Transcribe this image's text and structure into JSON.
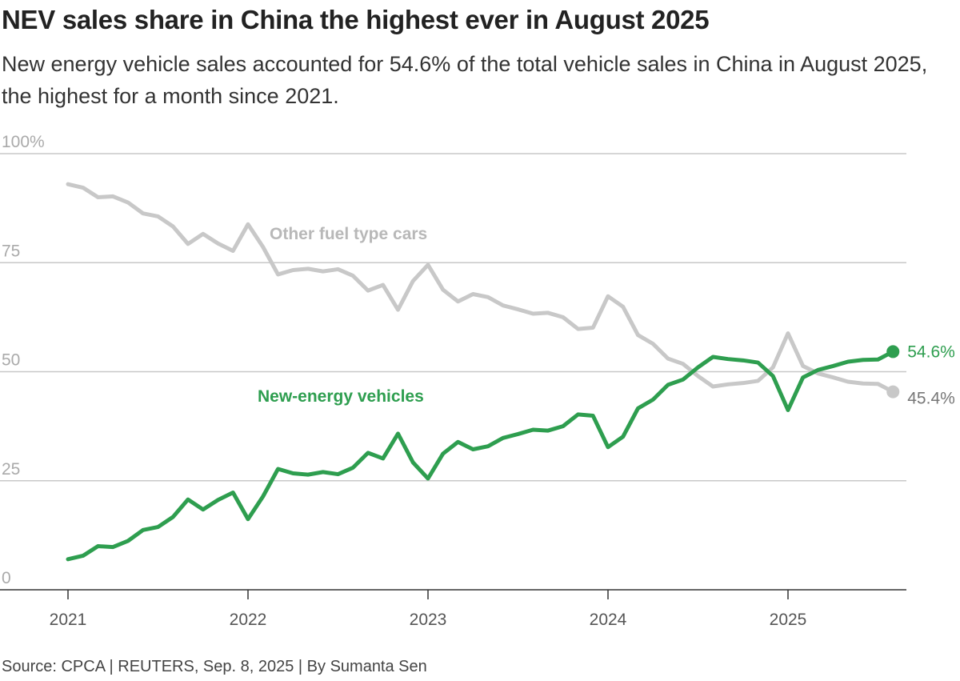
{
  "header": {
    "title": "NEV sales share in China the highest ever in August 2025",
    "subtitle": "New energy vehicle sales accounted for 54.6% of the total vehicle sales in China in August 2025, the highest for a month since 2021."
  },
  "footer": {
    "source": "Source: CPCA | REUTERS, Sep. 8, 2025 | By Sumanta Sen"
  },
  "chart_data": {
    "type": "line",
    "x_start": "2021-01",
    "x_tick_labels": [
      "2021",
      "2022",
      "2023",
      "2024",
      "2025"
    ],
    "y_tick_labels": [
      "100%",
      "75",
      "50",
      "25",
      "0"
    ],
    "ylim": [
      0,
      100
    ],
    "grid": true,
    "series": [
      {
        "name": "Other fuel type cars",
        "color": "#c8c8c8",
        "end_label": "45.4%",
        "values": [
          93.0,
          92.2,
          90.0,
          90.2,
          88.8,
          86.3,
          85.6,
          83.3,
          79.3,
          81.6,
          79.4,
          77.7,
          83.8,
          78.6,
          72.3,
          73.3,
          73.6,
          73.0,
          73.5,
          72.0,
          68.6,
          69.9,
          64.2,
          70.8,
          74.5,
          68.8,
          66.1,
          67.8,
          67.1,
          65.2,
          64.3,
          63.3,
          63.5,
          62.5,
          59.8,
          60.1,
          67.3,
          64.9,
          58.4,
          56.4,
          53.0,
          51.8,
          49.0,
          46.6,
          47.1,
          47.4,
          47.9,
          51.0,
          58.8,
          51.3,
          49.6,
          48.7,
          47.7,
          47.3,
          47.2,
          45.4
        ],
        "line_width": 5
      },
      {
        "name": "New-energy vehicles",
        "color": "#2e9e4f",
        "end_label": "54.6%",
        "values": [
          7.0,
          7.8,
          10.0,
          9.8,
          11.2,
          13.7,
          14.4,
          16.7,
          20.7,
          18.4,
          20.6,
          22.3,
          16.2,
          21.4,
          27.7,
          26.7,
          26.4,
          27.0,
          26.5,
          28.0,
          31.4,
          30.1,
          35.8,
          29.2,
          25.5,
          31.2,
          33.9,
          32.2,
          32.9,
          34.8,
          35.7,
          36.7,
          36.5,
          37.5,
          40.2,
          39.9,
          32.7,
          35.1,
          41.6,
          43.6,
          47.0,
          48.2,
          51.0,
          53.4,
          52.9,
          52.6,
          52.1,
          49.0,
          41.2,
          48.7,
          50.4,
          51.3,
          52.3,
          52.7,
          52.8,
          54.6
        ],
        "line_width": 5
      }
    ]
  }
}
